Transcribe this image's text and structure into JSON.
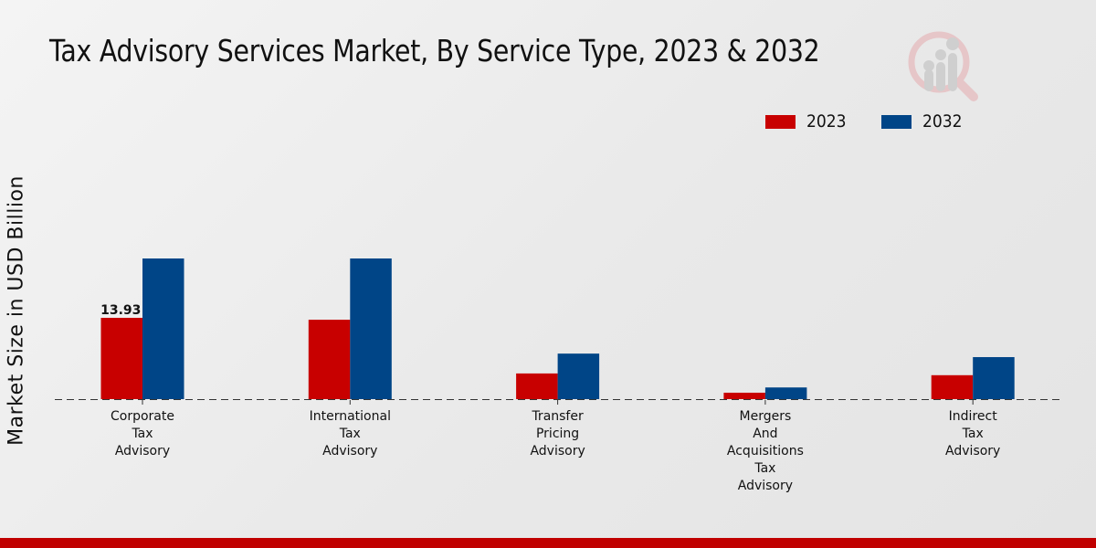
{
  "chart_data": {
    "type": "bar",
    "title": "Tax Advisory Services Market, By Service Type, 2023 & 2032",
    "xlabel": "",
    "ylabel": "Market Size in USD Billion",
    "categories": [
      [
        "Corporate",
        "Tax",
        "Advisory"
      ],
      [
        "International",
        "Tax",
        "Advisory"
      ],
      [
        "Transfer",
        "Pricing",
        "Advisory"
      ],
      [
        "Mergers",
        "And",
        "Acquisitions",
        "Tax",
        "Advisory"
      ],
      [
        "Indirect",
        "Tax",
        "Advisory"
      ]
    ],
    "series": [
      {
        "name": "2023",
        "color": "#c80000",
        "values": [
          13.93,
          13.6,
          4.4,
          1.1,
          4.1
        ]
      },
      {
        "name": "2032",
        "color": "#004587",
        "values": [
          24.1,
          24.1,
          7.8,
          2.0,
          7.2
        ]
      }
    ],
    "data_labels": [
      {
        "series": 0,
        "index": 0,
        "text": "13.93"
      }
    ],
    "ylim": [
      0,
      28
    ],
    "grid": false,
    "baseline": "dashed",
    "legend_position": "top-right"
  },
  "colors": {
    "accent": "#c00000",
    "series_2023": "#c80000",
    "series_2032": "#004587"
  },
  "logo": {
    "icon": "analytics-magnifier-icon"
  }
}
